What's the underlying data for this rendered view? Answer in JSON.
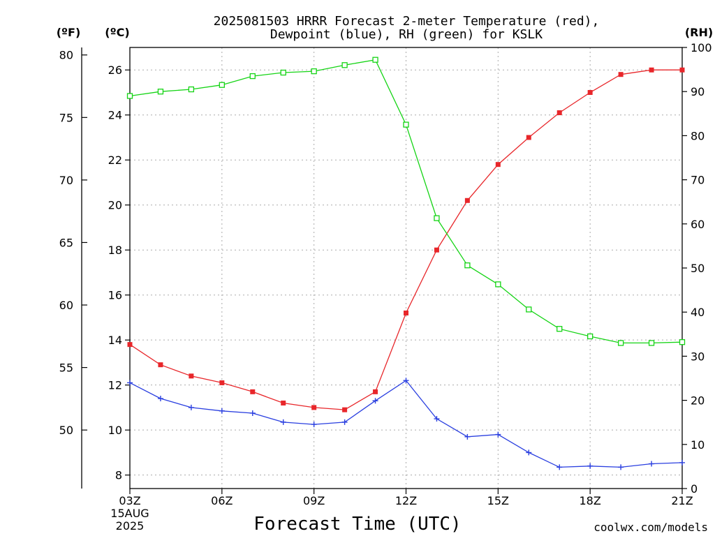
{
  "title_line1": "2025081503 HRRR Forecast 2-meter Temperature (red),",
  "title_line2": "Dewpoint (blue), RH (green) for KSLK",
  "xlabel": "Forecast Time (UTC)",
  "watermark": "coolwx.com/models",
  "date_line1": "15AUG",
  "date_line2": "2025",
  "unit_f": "(ºF)",
  "unit_c": "(ºC)",
  "unit_rh": "(RH)",
  "colors": {
    "temperature": "#e8262a",
    "dewpoint": "#2a3fe0",
    "rh": "#14d414",
    "watermark": "#d8203a"
  },
  "chart_data": {
    "type": "line",
    "x_tick_labels": [
      "03Z",
      "06Z",
      "09Z",
      "12Z",
      "15Z",
      "18Z",
      "21Z"
    ],
    "x_hours": [
      3,
      4,
      5,
      6,
      7,
      8,
      9,
      10,
      11,
      12,
      13,
      14,
      15,
      16,
      17,
      18,
      19,
      20,
      21
    ],
    "xlim": [
      3,
      21
    ],
    "ylim_c": [
      7.4,
      27
    ],
    "ylim_rh": [
      0,
      100
    ],
    "yticks_c": [
      "8",
      "10",
      "12",
      "14",
      "16",
      "18",
      "20",
      "22",
      "24",
      "26"
    ],
    "yticks_f": [
      "50",
      "55",
      "60",
      "65",
      "70",
      "75",
      "80"
    ],
    "yticks_rh": [
      "0",
      "10",
      "20",
      "30",
      "40",
      "50",
      "60",
      "70",
      "80",
      "90",
      "100"
    ],
    "grid": true,
    "series": [
      {
        "key": "temperature",
        "axis": "c",
        "marker": "filled-square",
        "values": [
          13.8,
          12.9,
          12.4,
          12.1,
          11.7,
          11.2,
          11.0,
          10.9,
          11.7,
          15.2,
          18.0,
          20.2,
          21.8,
          23.0,
          24.1,
          25.0,
          25.8,
          26.0,
          26.0
        ]
      },
      {
        "key": "dewpoint",
        "axis": "c",
        "marker": "plus",
        "values": [
          12.1,
          11.4,
          11.0,
          10.85,
          10.75,
          10.35,
          10.25,
          10.35,
          11.3,
          12.2,
          10.5,
          9.7,
          9.8,
          9.0,
          8.35,
          8.4,
          8.35,
          8.5,
          8.55
        ]
      },
      {
        "key": "rh",
        "axis": "rh",
        "marker": "open-square",
        "values": [
          89,
          90,
          90.5,
          91.5,
          93.5,
          94.3,
          94.6,
          96,
          97.2,
          82.5,
          61.3,
          50.6,
          46.3,
          40.6,
          36.2,
          34.5,
          33,
          33,
          33.2
        ]
      }
    ]
  }
}
